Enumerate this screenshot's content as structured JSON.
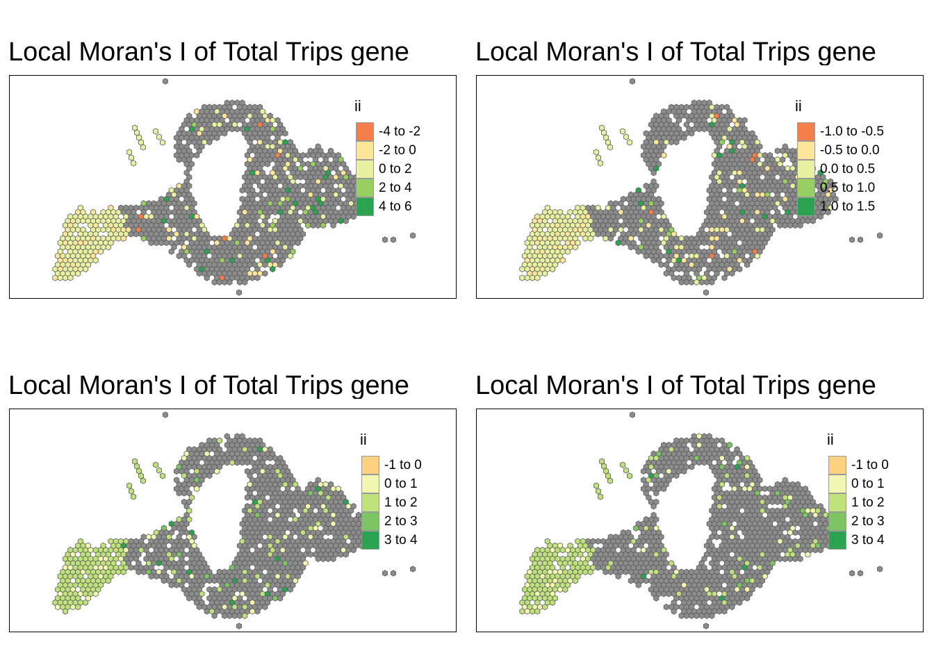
{
  "panels": [
    {
      "title": "Local Moran's I of Total Trips gene",
      "legend": {
        "title": "ii",
        "items": [
          {
            "label": "-4 to -2",
            "color": "#f57f4b"
          },
          {
            "label": "-2 to 0",
            "color": "#fde69a"
          },
          {
            "label": "0 to 2",
            "color": "#e8f1a2"
          },
          {
            "label": "2 to 4",
            "color": "#98cf63"
          },
          {
            "label": "4 to 6",
            "color": "#2ba351"
          }
        ]
      }
    },
    {
      "title": "Local Moran's I of Total Trips gene",
      "legend": {
        "title": "ii",
        "items": [
          {
            "label": "-1.0 to -0.5",
            "color": "#f57f4b"
          },
          {
            "label": "-0.5 to 0.0",
            "color": "#fde69a"
          },
          {
            "label": "0.0 to 0.5",
            "color": "#e8f1a2"
          },
          {
            "label": "0.5 to 1.0",
            "color": "#98cf63"
          },
          {
            "label": "1.0 to 1.5",
            "color": "#2ba351"
          }
        ]
      }
    },
    {
      "title": "Local Moran's I of Total Trips gene",
      "legend": {
        "title": "ii",
        "items": [
          {
            "label": "-1 to 0",
            "color": "#fdd17f"
          },
          {
            "label": "0 to 1",
            "color": "#f1f7b0"
          },
          {
            "label": "1 to 2",
            "color": "#bfe27c"
          },
          {
            "label": "2 to 3",
            "color": "#7cc562"
          },
          {
            "label": "3 to 4",
            "color": "#2ba351"
          }
        ]
      }
    },
    {
      "title": "Local Moran's I of Total Trips gene",
      "legend": {
        "title": "ii",
        "items": [
          {
            "label": "-1 to 0",
            "color": "#fdd17f"
          },
          {
            "label": "0 to 1",
            "color": "#f1f7b0"
          },
          {
            "label": "1 to 2",
            "color": "#bfe27c"
          },
          {
            "label": "2 to 3",
            "color": "#7cc562"
          },
          {
            "label": "3 to 4",
            "color": "#2ba351"
          }
        ]
      }
    }
  ],
  "colors": {
    "insignificant_fill": "#8c8c8c",
    "hex_stroke": "#5a5a5a",
    "frame": "#000000"
  }
}
